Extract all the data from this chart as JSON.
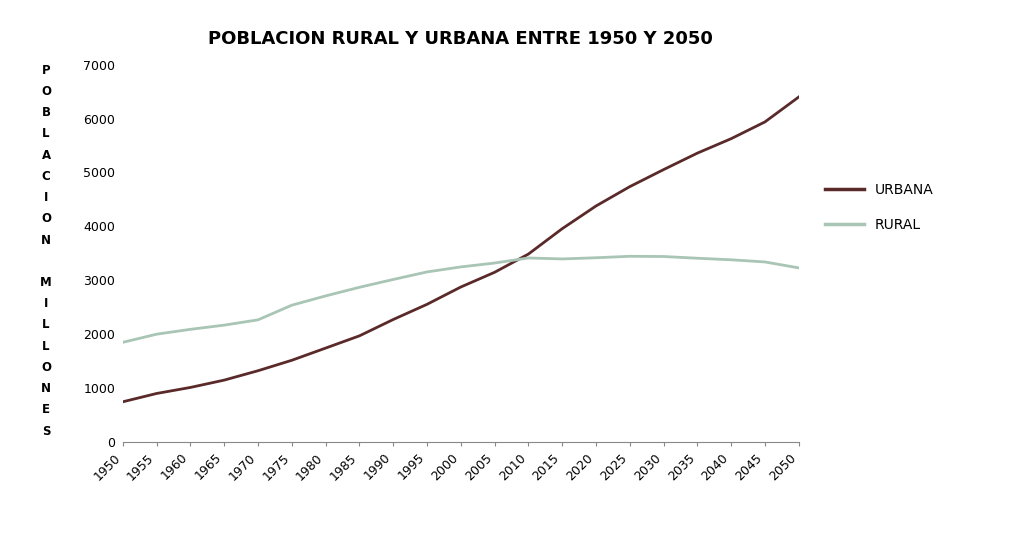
{
  "title": "POBLACION RURAL Y URBANA ENTRE 1950 Y 2050",
  "ylabel_chars": [
    "P",
    "O",
    "B",
    "L",
    "A",
    "C",
    "I",
    "O",
    "N",
    "",
    "M",
    "I",
    "L",
    "L",
    "O",
    "N",
    "E",
    "S"
  ],
  "years": [
    1950,
    1955,
    1960,
    1965,
    1970,
    1975,
    1980,
    1985,
    1990,
    1995,
    2000,
    2005,
    2010,
    2015,
    2020,
    2025,
    2030,
    2035,
    2040,
    2045,
    2050
  ],
  "urban": [
    746,
    900,
    1012,
    1148,
    1322,
    1516,
    1742,
    1969,
    2272,
    2554,
    2875,
    3148,
    3486,
    3957,
    4378,
    4737,
    5053,
    5359,
    5627,
    5938,
    6400
  ],
  "rural": [
    1849,
    2000,
    2090,
    2168,
    2266,
    2538,
    2710,
    2870,
    3015,
    3155,
    3248,
    3320,
    3414,
    3396,
    3418,
    3445,
    3441,
    3409,
    3380,
    3340,
    3230
  ],
  "urban_color": "#5a2a2a",
  "rural_color": "#a8c5b5",
  "background_color": "#ffffff",
  "ylim": [
    0,
    7000
  ],
  "yticks": [
    0,
    1000,
    2000,
    3000,
    4000,
    5000,
    6000,
    7000
  ],
  "legend_labels": [
    "URBANA",
    "RURAL"
  ],
  "title_fontsize": 13,
  "tick_fontsize": 9,
  "ylabel_fontsize": 8.5
}
